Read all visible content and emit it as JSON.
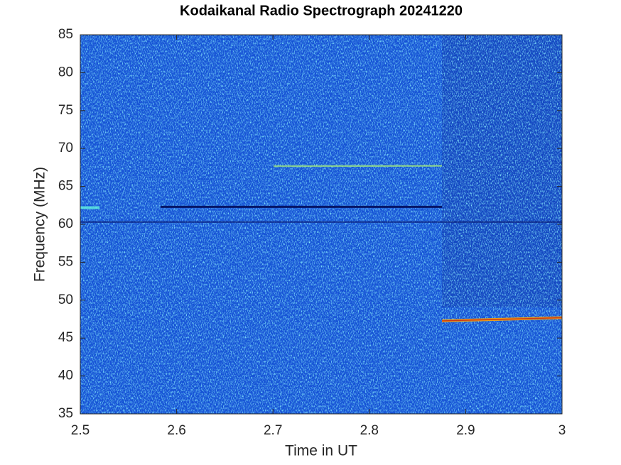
{
  "chart_data": {
    "type": "heatmap",
    "title": "Kodaikanal Radio Spectrograph  20241220",
    "xlabel": "Time in UT",
    "ylabel": "Frequency (MHz)",
    "xlim": [
      2.5,
      3
    ],
    "ylim": [
      35,
      85
    ],
    "xticks": [
      2.5,
      2.6,
      2.7,
      2.8,
      2.9,
      3
    ],
    "yticks": [
      35,
      40,
      45,
      50,
      55,
      60,
      65,
      70,
      75,
      80,
      85
    ]
  }
}
